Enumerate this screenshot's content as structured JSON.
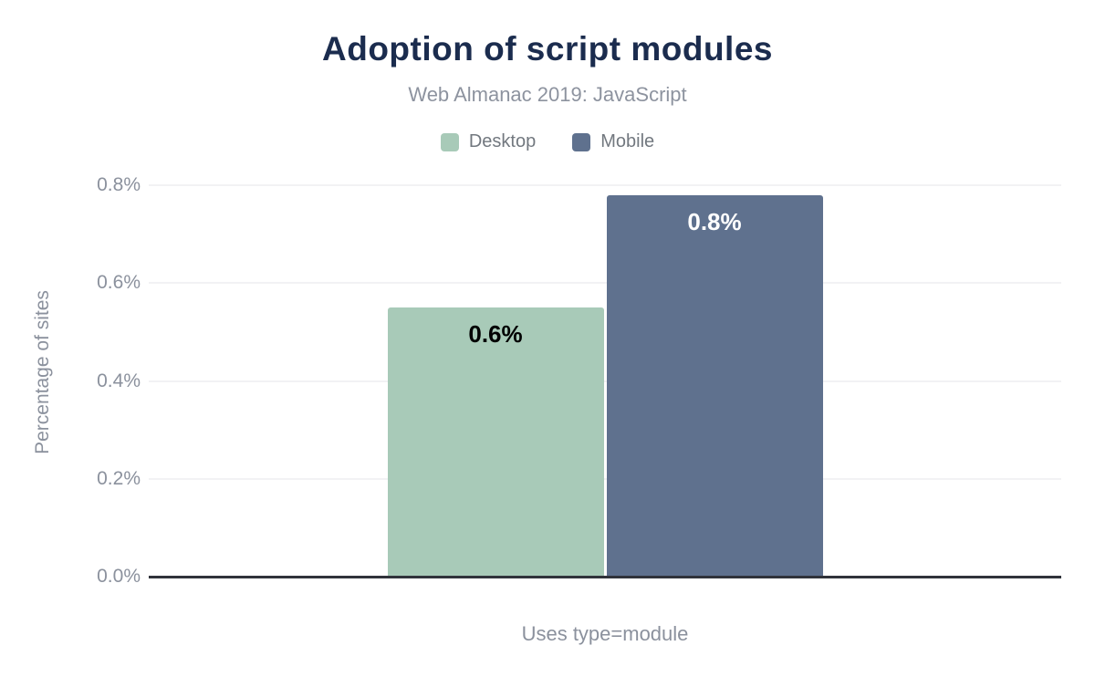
{
  "header": {
    "title": "Adoption of script modules",
    "subtitle": "Web Almanac 2019: JavaScript"
  },
  "chart_data": {
    "type": "bar",
    "title": "Adoption of script modules",
    "subtitle": "Web Almanac 2019: JavaScript",
    "categories": [
      "Uses type=module"
    ],
    "series": [
      {
        "name": "Desktop",
        "values": [
          0.55
        ],
        "data_labels": [
          "0.6%"
        ],
        "color": "#a8cab8",
        "label_color": "#000000"
      },
      {
        "name": "Mobile",
        "values": [
          0.78
        ],
        "data_labels": [
          "0.8%"
        ],
        "color": "#5f718e",
        "label_color": "#ffffff"
      }
    ],
    "xlabel": "Uses type=module",
    "ylabel": "Percentage of sites",
    "ylim": [
      0,
      0.8
    ],
    "yticks": [
      0,
      0.2,
      0.4,
      0.6,
      0.8
    ],
    "ytick_labels": [
      "0.0%",
      "0.2%",
      "0.4%",
      "0.6%",
      "0.8%"
    ],
    "grid": true,
    "legend_position": "top"
  },
  "colors": {
    "title": "#1b2c4e",
    "secondary_text": "#8b919d",
    "legend_text": "#72787f",
    "gridline": "#f2f2f4",
    "baseline": "#30333b",
    "background": "#ffffff",
    "desktop": "#a8cab8",
    "mobile": "#5f718e"
  }
}
